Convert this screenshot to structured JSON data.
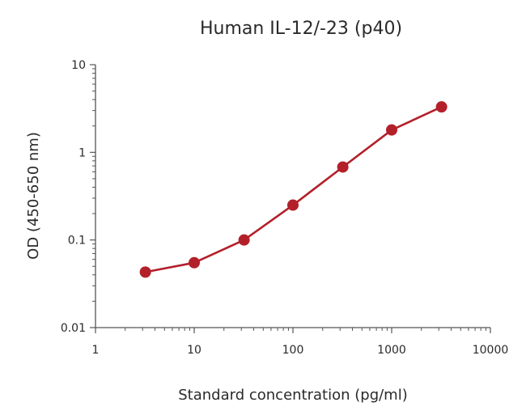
{
  "chart_data": {
    "type": "line",
    "title": "Human IL-12/-23 (p40)",
    "xlabel": "Standard concentration (pg/ml)",
    "ylabel": "OD (450-650 nm)",
    "x_scale": "log",
    "y_scale": "log",
    "xlim": [
      1,
      10000
    ],
    "ylim": [
      0.01,
      10
    ],
    "x_ticks": [
      "1",
      "10",
      "100",
      "1000",
      "10000"
    ],
    "y_ticks": [
      "0.01",
      "0.1",
      "1",
      "10"
    ],
    "grid": false,
    "legend": "none",
    "series": [
      {
        "x": [
          3.2,
          10,
          32,
          100,
          320,
          1000,
          3200
        ],
        "y": [
          0.043,
          0.055,
          0.1,
          0.25,
          0.68,
          1.8,
          3.3
        ],
        "color": "#b3202a",
        "marker": "circle"
      }
    ]
  }
}
